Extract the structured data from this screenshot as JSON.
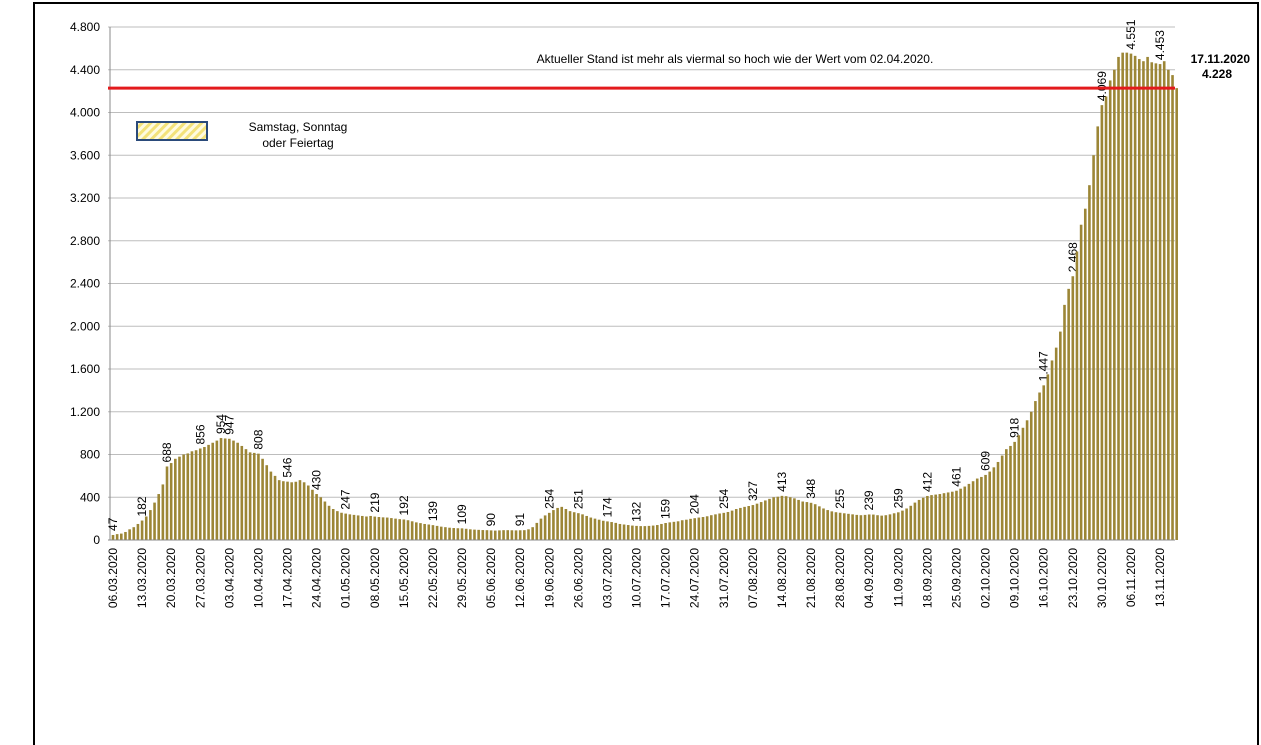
{
  "chart_data": {
    "type": "bar",
    "annotation": "Aktueller Stand ist mehr als viermal so hoch wie der Wert vom 02.04.2020.",
    "legend": {
      "lines": [
        "Samstag, Sonntag",
        "oder Feiertag"
      ],
      "color": "#f3e27a"
    },
    "reference_line": {
      "value": 4228,
      "label": "4.228",
      "date": "17.11.2020",
      "color": "#e31a1c"
    },
    "color": "#9c8636",
    "grid": true,
    "ylim": [
      0,
      4800
    ],
    "yticks": [
      0,
      400,
      800,
      {
        "value": 1200,
        "label": "1.200"
      },
      {
        "value": 1600,
        "label": "1.600"
      },
      {
        "value": 2000,
        "label": "2.000"
      },
      {
        "value": 2400,
        "label": "2.400"
      },
      {
        "value": 2800,
        "label": "2.800"
      },
      {
        "value": 3200,
        "label": "3.200"
      },
      {
        "value": 3600,
        "label": "3.600"
      },
      {
        "value": 4000,
        "label": "4.000"
      },
      {
        "value": 4400,
        "label": "4.400"
      },
      {
        "value": 4800,
        "label": "4.800"
      }
    ],
    "categories": [
      "06.03.2020",
      null,
      null,
      null,
      null,
      null,
      null,
      "13.03.2020",
      null,
      null,
      null,
      null,
      null,
      null,
      "20.03.2020",
      null,
      null,
      null,
      null,
      null,
      null,
      "27.03.2020",
      null,
      null,
      null,
      null,
      null,
      null,
      "03.04.2020",
      null,
      null,
      null,
      null,
      null,
      null,
      "10.04.2020",
      null,
      null,
      null,
      null,
      null,
      null,
      "17.04.2020",
      null,
      null,
      null,
      null,
      null,
      null,
      "24.04.2020",
      null,
      null,
      null,
      null,
      null,
      null,
      "01.05.2020",
      null,
      null,
      null,
      null,
      null,
      null,
      "08.05.2020",
      null,
      null,
      null,
      null,
      null,
      null,
      "15.05.2020",
      null,
      null,
      null,
      null,
      null,
      null,
      "22.05.2020",
      null,
      null,
      null,
      null,
      null,
      null,
      "29.05.2020",
      null,
      null,
      null,
      null,
      null,
      null,
      "05.06.2020",
      null,
      null,
      null,
      null,
      null,
      null,
      "12.06.2020",
      null,
      null,
      null,
      null,
      null,
      null,
      "19.06.2020",
      null,
      null,
      null,
      null,
      null,
      null,
      "26.06.2020",
      null,
      null,
      null,
      null,
      null,
      null,
      "03.07.2020",
      null,
      null,
      null,
      null,
      null,
      null,
      "10.07.2020",
      null,
      null,
      null,
      null,
      null,
      null,
      "17.07.2020",
      null,
      null,
      null,
      null,
      null,
      null,
      "24.07.2020",
      null,
      null,
      null,
      null,
      null,
      null,
      "31.07.2020",
      null,
      null,
      null,
      null,
      null,
      null,
      "07.08.2020",
      null,
      null,
      null,
      null,
      null,
      null,
      "14.08.2020",
      null,
      null,
      null,
      null,
      null,
      null,
      "21.08.2020",
      null,
      null,
      null,
      null,
      null,
      null,
      "28.08.2020",
      null,
      null,
      null,
      null,
      null,
      null,
      "04.09.2020",
      null,
      null,
      null,
      null,
      null,
      null,
      "11.09.2020",
      null,
      null,
      null,
      null,
      null,
      null,
      "18.09.2020",
      null,
      null,
      null,
      null,
      null,
      null,
      "25.09.2020",
      null,
      null,
      null,
      null,
      null,
      null,
      "02.10.2020",
      null,
      null,
      null,
      null,
      null,
      null,
      "09.10.2020",
      null,
      null,
      null,
      null,
      null,
      null,
      "16.10.2020",
      null,
      null,
      null,
      null,
      null,
      null,
      "23.10.2020",
      null,
      null,
      null,
      null,
      null,
      null,
      "30.10.2020",
      null,
      null,
      null,
      null,
      null,
      null,
      "06.11.2020",
      null,
      null,
      null,
      null,
      null,
      null,
      "13.11.2020",
      null,
      null,
      null,
      null
    ],
    "values": [
      47,
      55,
      60,
      75,
      100,
      120,
      150,
      182,
      220,
      280,
      350,
      430,
      520,
      688,
      720,
      760,
      780,
      800,
      810,
      830,
      840,
      856,
      870,
      890,
      910,
      930,
      954,
      950,
      947,
      930,
      910,
      880,
      850,
      820,
      815,
      808,
      760,
      700,
      640,
      600,
      560,
      550,
      546,
      540,
      545,
      560,
      540,
      510,
      470,
      430,
      400,
      360,
      320,
      290,
      270,
      255,
      247,
      240,
      235,
      230,
      225,
      220,
      225,
      219,
      215,
      212,
      210,
      205,
      200,
      195,
      192,
      185,
      175,
      165,
      158,
      150,
      145,
      139,
      132,
      125,
      120,
      115,
      112,
      110,
      109,
      105,
      100,
      97,
      95,
      93,
      92,
      90,
      88,
      90,
      92,
      92,
      91,
      90,
      91,
      92,
      100,
      120,
      160,
      200,
      230,
      254,
      280,
      300,
      310,
      290,
      270,
      260,
      251,
      240,
      225,
      210,
      200,
      190,
      180,
      174,
      168,
      160,
      150,
      145,
      140,
      135,
      132,
      130,
      130,
      132,
      135,
      140,
      150,
      159,
      165,
      170,
      175,
      185,
      190,
      198,
      204,
      210,
      215,
      222,
      232,
      240,
      248,
      254,
      262,
      275,
      290,
      300,
      310,
      318,
      327,
      340,
      355,
      370,
      385,
      400,
      405,
      413,
      410,
      400,
      390,
      375,
      360,
      355,
      348,
      335,
      315,
      295,
      280,
      268,
      260,
      255,
      250,
      245,
      240,
      235,
      232,
      235,
      239,
      238,
      232,
      228,
      232,
      240,
      250,
      259,
      275,
      295,
      320,
      350,
      375,
      395,
      412,
      420,
      425,
      430,
      438,
      445,
      452,
      461,
      480,
      500,
      525,
      550,
      575,
      590,
      609,
      640,
      680,
      730,
      790,
      850,
      880,
      918,
      980,
      1050,
      1120,
      1200,
      1300,
      1380,
      1447,
      1550,
      1680,
      1800,
      1950,
      2200,
      2350,
      2468,
      2700,
      2950,
      3100,
      3320,
      3600,
      3870,
      4069,
      4150,
      4300,
      4400,
      4520,
      4560,
      4560,
      4551,
      4530,
      4500,
      4480,
      4520,
      4470,
      4460,
      4453,
      4480,
      4400,
      4350,
      4228
    ],
    "value_labels": [
      "47",
      null,
      null,
      null,
      null,
      null,
      null,
      "182",
      null,
      null,
      null,
      null,
      null,
      "688",
      null,
      null,
      null,
      null,
      null,
      null,
      null,
      "856",
      null,
      null,
      null,
      null,
      "954",
      null,
      "947",
      null,
      null,
      null,
      null,
      null,
      null,
      "808",
      null,
      null,
      null,
      null,
      null,
      null,
      "546",
      null,
      null,
      null,
      null,
      null,
      null,
      "430",
      null,
      null,
      null,
      null,
      null,
      null,
      "247",
      null,
      null,
      null,
      null,
      null,
      null,
      "219",
      null,
      null,
      null,
      null,
      null,
      null,
      "192",
      null,
      null,
      null,
      null,
      null,
      null,
      "139",
      null,
      null,
      null,
      null,
      null,
      null,
      "109",
      null,
      null,
      null,
      null,
      null,
      null,
      "90",
      null,
      null,
      null,
      null,
      null,
      null,
      "91",
      null,
      null,
      null,
      null,
      null,
      null,
      "254",
      null,
      null,
      null,
      null,
      null,
      null,
      "251",
      null,
      null,
      null,
      null,
      null,
      null,
      "174",
      null,
      null,
      null,
      null,
      null,
      null,
      "132",
      null,
      null,
      null,
      null,
      null,
      null,
      "159",
      null,
      null,
      null,
      null,
      null,
      null,
      "204",
      null,
      null,
      null,
      null,
      null,
      null,
      "254",
      null,
      null,
      null,
      null,
      null,
      null,
      "327",
      null,
      null,
      null,
      null,
      null,
      null,
      "413",
      null,
      null,
      null,
      null,
      null,
      null,
      "348",
      null,
      null,
      null,
      null,
      null,
      null,
      "255",
      null,
      null,
      null,
      null,
      null,
      null,
      "239",
      null,
      null,
      null,
      null,
      null,
      null,
      "259",
      null,
      null,
      null,
      null,
      null,
      null,
      "412",
      null,
      null,
      null,
      null,
      null,
      null,
      "461",
      null,
      null,
      null,
      null,
      null,
      null,
      "609",
      null,
      null,
      null,
      null,
      null,
      null,
      "918",
      null,
      null,
      null,
      null,
      null,
      null,
      "1.447",
      null,
      null,
      null,
      null,
      null,
      null,
      "2.468",
      null,
      null,
      null,
      null,
      null,
      null,
      "4.069",
      null,
      null,
      null,
      null,
      null,
      null,
      "4.551",
      null,
      null,
      null,
      null,
      null,
      null,
      "4.453",
      null,
      null,
      null,
      null
    ]
  }
}
